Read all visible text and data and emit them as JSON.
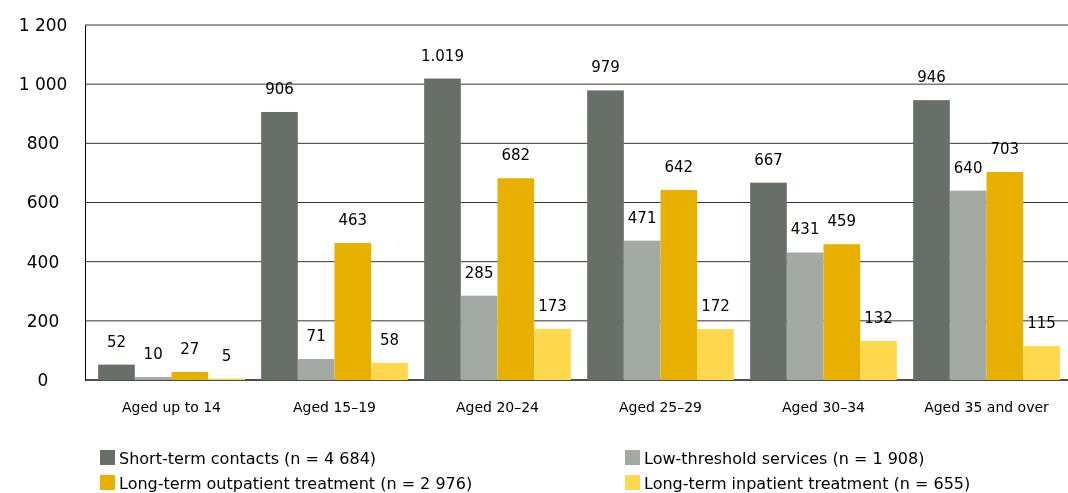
{
  "chart_data": {
    "type": "bar",
    "categories": [
      "Aged up to 14",
      "Aged 15–19",
      "Aged 20–24",
      "Aged 25–29",
      "Aged 30–34",
      "Aged 35 and over"
    ],
    "series": [
      {
        "name": "Short-term contacts (n = 4 684)",
        "color": "#667066",
        "values": [
          52,
          906,
          1019,
          979,
          667,
          946
        ],
        "value_labels": [
          "52",
          "906",
          "1.019",
          "979",
          "667",
          "946"
        ]
      },
      {
        "name": "Low-threshold services (n = 1 908)",
        "color": "#a3aaa3",
        "values": [
          10,
          71,
          285,
          471,
          431,
          640
        ],
        "value_labels": [
          "10",
          "71",
          "285",
          "471",
          "431",
          "640"
        ]
      },
      {
        "name": "Long-term outpatient treatment (n = 2 976)",
        "color": "#e8b000",
        "values": [
          27,
          463,
          682,
          642,
          459,
          703
        ],
        "value_labels": [
          "27",
          "463",
          "682",
          "642",
          "459",
          "703"
        ]
      },
      {
        "name": "Long-term inpatient treatment (n = 655)",
        "color": "#ffd84d",
        "values": [
          5,
          58,
          173,
          172,
          132,
          115
        ],
        "value_labels": [
          "5",
          "58",
          "173",
          "172",
          "132",
          "115"
        ]
      }
    ],
    "ylim": [
      0,
      1200
    ],
    "yticks": [
      0,
      200,
      400,
      600,
      800,
      {
        "value": 1000,
        "label": "1 000"
      },
      {
        "value": 1200,
        "label": "1 200"
      }
    ],
    "grid": "y",
    "legend": "bottom"
  }
}
